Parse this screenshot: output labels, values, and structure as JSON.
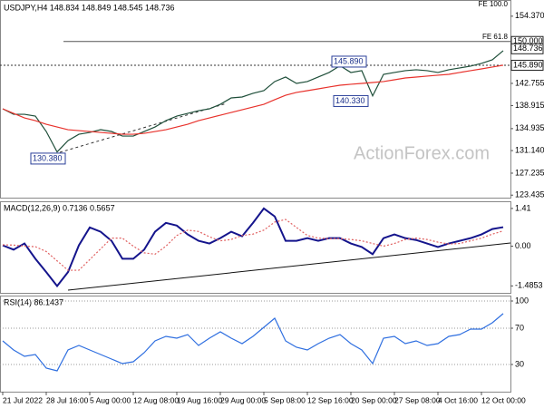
{
  "chart_data": [
    {
      "type": "line",
      "title": "USDJPY,H4 148.834 148.849 148.545 148.736",
      "watermark": "ActionForex.com",
      "categories": [
        "21 Jul 2022",
        null,
        null,
        null,
        "28 Jul 16:00",
        null,
        null,
        null,
        "5 Aug 00:00",
        null,
        null,
        null,
        "12 Aug 08:00",
        null,
        null,
        null,
        "19 Aug 16:00",
        null,
        null,
        null,
        "29 Aug 00:00",
        null,
        null,
        null,
        "5 Sep 08:00",
        null,
        null,
        null,
        "12 Sep 16:00",
        null,
        null,
        null,
        "20 Sep 00:00",
        null,
        null,
        null,
        "27 Sep 08:00",
        null,
        null,
        null,
        "4 Oct 16:00",
        null,
        null,
        null,
        "12 Oct 00:00",
        null,
        null
      ],
      "series": [
        {
          "color": "#1f4f3a",
          "values": [
            138.36,
            137.41,
            137.41,
            137.1,
            134.44,
            130.9,
            132.86,
            133.96,
            134.27,
            134.75,
            134.44,
            133.65,
            133.65,
            134.44,
            135.22,
            136.32,
            137.1,
            137.57,
            138.04,
            138.36,
            139.14,
            140.24,
            140.4,
            141.03,
            141.5,
            143.07,
            143.85,
            142.75,
            143.07,
            143.85,
            144.64,
            145.8,
            144.64,
            144.95,
            140.6,
            144.32,
            144.64,
            144.95,
            145.11,
            144.95,
            144.64,
            145.11,
            145.42,
            145.74,
            146.21,
            146.83,
            148.4
          ]
        },
        {
          "color": "#e8322c",
          "values": [
            138.36,
            137.57,
            136.79,
            136.32,
            135.69,
            135.22,
            134.75,
            134.59,
            134.43,
            134.28,
            134.12,
            133.96,
            133.96,
            134.12,
            134.43,
            134.75,
            135.22,
            135.69,
            136.32,
            136.79,
            137.26,
            137.73,
            138.2,
            138.67,
            139.14,
            139.93,
            140.71,
            141.19,
            141.5,
            141.81,
            142.13,
            142.44,
            142.6,
            142.75,
            142.91,
            143.07,
            143.38,
            143.69,
            143.85,
            144.01,
            144.17,
            144.32,
            144.64,
            144.95,
            145.26,
            145.58,
            145.89
          ]
        }
      ],
      "ylim": [
        123,
        156.7
      ],
      "yticks": [
        {
          "value": 154.37,
          "label": "154.370"
        },
        142.755,
        138.915,
        134.935,
        {
          "value": 131.14,
          "label": "131.140"
        },
        127.235,
        123.435
      ],
      "levels": [
        {
          "value": 150,
          "label": "150.000",
          "text": "FE 61.8"
        },
        {
          "value": 145.89,
          "label": "145.890"
        }
      ],
      "fibo_top": {
        "value": 156.4,
        "text": "FE 100.0"
      },
      "last_price": {
        "value": 148.736,
        "label": "148.736"
      },
      "annotations": [
        {
          "value": 130.38,
          "label": "130.380"
        },
        {
          "value": 145.89,
          "label": "145.890"
        },
        {
          "value": 140.33,
          "label": "140.330"
        }
      ]
    },
    {
      "type": "line",
      "title": "MACD(12,26,9) 0.7136 0.5657",
      "series": [
        {
          "color": "#14148c",
          "values": [
            0.03,
            -0.13,
            0.1,
            -0.47,
            -0.97,
            -1.49,
            -0.97,
            0.03,
            0.7,
            0.54,
            0.2,
            -0.47,
            -0.47,
            -0.13,
            0.54,
            0.87,
            0.77,
            0.44,
            0.2,
            0.1,
            0.3,
            0.54,
            0.37,
            0.87,
            1.41,
            1.11,
            0.2,
            0.2,
            0.3,
            0.2,
            0.3,
            0.3,
            0.1,
            -0.03,
            -0.3,
            0.3,
            0.44,
            0.3,
            0.23,
            0.1,
            -0.03,
            0.1,
            0.2,
            0.3,
            0.44,
            0.64,
            0.71
          ]
        },
        {
          "color": "#e06060",
          "dashed": true,
          "values": [
            0.05,
            0.04,
            0.0,
            -0.02,
            -0.2,
            -0.55,
            -0.9,
            -0.9,
            -0.5,
            -0.1,
            0.3,
            0.3,
            0.0,
            -0.25,
            -0.3,
            0.0,
            0.4,
            0.6,
            0.55,
            0.35,
            0.2,
            0.25,
            0.4,
            0.45,
            0.6,
            0.9,
            1.0,
            0.7,
            0.4,
            0.3,
            0.28,
            0.28,
            0.25,
            0.2,
            0.1,
            0.0,
            0.1,
            0.25,
            0.3,
            0.25,
            0.15,
            0.08,
            0.1,
            0.2,
            0.3,
            0.45,
            0.57
          ]
        }
      ],
      "ylim": [
        -1.745,
        1.644
      ],
      "yticks": [
        1.41,
        {
          "value": 0,
          "label": "0.00"
        },
        -1.4853
      ]
    },
    {
      "type": "line",
      "title": "RSI(14) 86.1437",
      "series": [
        {
          "color": "#2f6fe0",
          "values": [
            56,
            46,
            39,
            41,
            26,
            23,
            46,
            51,
            46,
            41,
            36,
            31,
            33,
            43,
            56,
            61,
            59,
            63,
            51,
            59,
            66,
            59,
            53,
            61,
            71,
            81,
            56,
            49,
            46,
            53,
            59,
            63,
            53,
            46,
            31,
            59,
            61,
            53,
            56,
            51,
            53,
            61,
            63,
            69,
            69,
            76,
            86.14
          ]
        }
      ],
      "ylim": [
        0,
        105
      ],
      "yticks": [
        100,
        70,
        30
      ],
      "grid": true
    }
  ]
}
